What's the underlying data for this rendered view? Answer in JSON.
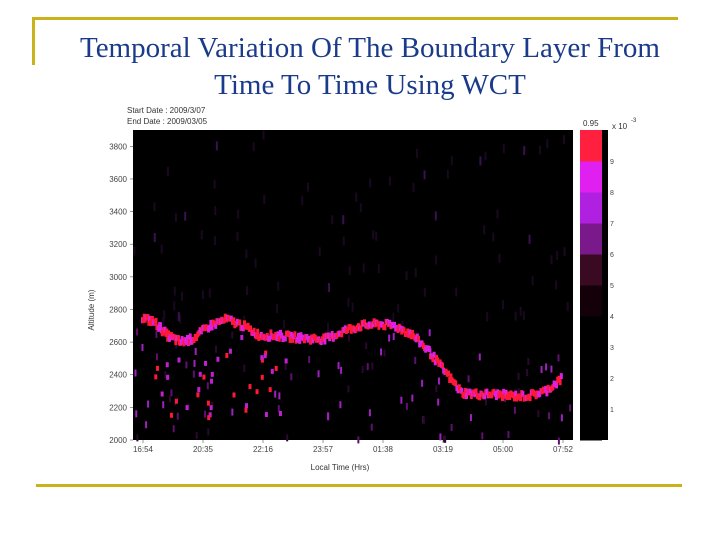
{
  "slide": {
    "title_line1": "Temporal Variation Of The Boundary Layer From",
    "title_line2": "Time To Time Using WCT"
  },
  "chart_data": {
    "type": "heatmap",
    "header": {
      "start_date": "Start Date : 2009/3/07",
      "end_date": "End Date : 2009/03/05"
    },
    "xlabel": "Local Time (Hrs)",
    "ylabel": "Altitude (m)",
    "x_ticks": [
      "16:54",
      "20:35",
      "22:16",
      "23:57",
      "01:38",
      "03:19",
      "05:00",
      "07:52"
    ],
    "y_ticks": [
      2000,
      2200,
      2400,
      2600,
      2800,
      3000,
      3200,
      3400,
      3600,
      3800
    ],
    "ylim": [
      2000,
      3900
    ],
    "colorbar": {
      "ticks": [
        1,
        2,
        3,
        4,
        5,
        6,
        7,
        8,
        9
      ],
      "scale_label": "x 10",
      "exponent": "-3",
      "top_label": "0.95",
      "colors": [
        "#000000",
        "#000000",
        "#000000",
        "#000000",
        "#140008",
        "#3a0a22",
        "#7a1a8a",
        "#b020e0",
        "#e020f0",
        "#ff2040"
      ]
    },
    "boundary_layer": {
      "x_index": [
        0.0,
        0.03,
        0.06,
        0.09,
        0.12,
        0.16,
        0.2,
        0.24,
        0.28,
        0.32,
        0.36,
        0.4,
        0.44,
        0.48,
        0.52,
        0.56,
        0.6,
        0.64,
        0.68,
        0.72,
        0.76,
        0.8,
        0.84,
        0.88,
        0.92,
        0.96,
        1.0
      ],
      "altitude": [
        2750,
        2720,
        2640,
        2600,
        2620,
        2700,
        2740,
        2700,
        2640,
        2640,
        2630,
        2620,
        2620,
        2670,
        2700,
        2710,
        2700,
        2650,
        2550,
        2420,
        2290,
        2280,
        2280,
        2270,
        2270,
        2300,
        2380
      ]
    }
  }
}
